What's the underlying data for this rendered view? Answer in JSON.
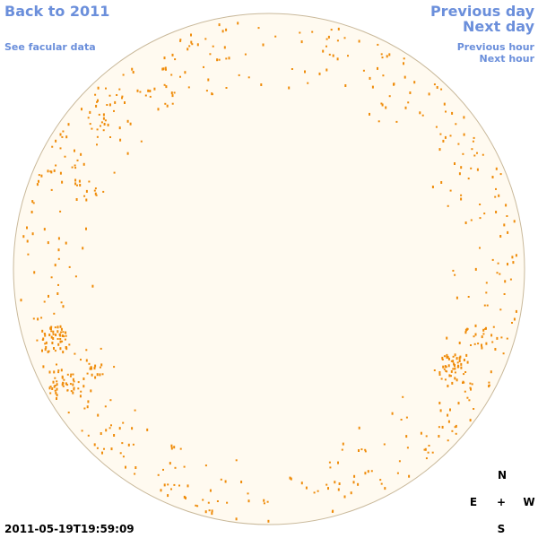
{
  "header": {
    "back": "Back to 2011",
    "facular": "See facular data",
    "previous_day": "Previous day",
    "next_day": "Next day",
    "previous_hour": "Previous hour",
    "next_hour": "Next hour"
  },
  "timestamp": "2011-05-19T19:59:09",
  "compass": {
    "north": "N",
    "east": "E",
    "center": "+",
    "west": "W",
    "south": "S"
  }
}
